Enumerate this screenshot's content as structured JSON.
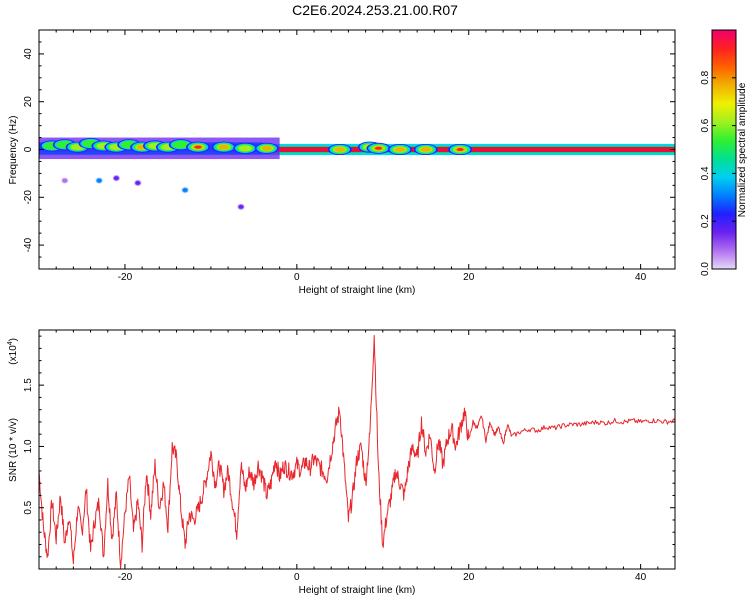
{
  "title": "C2E6.2024.253.21.00.R07",
  "chart_data": [
    {
      "type": "heatmap",
      "xlabel": "Height of straight line (km)",
      "ylabel": "Frequency (Hz)",
      "xlim": [
        -30,
        44
      ],
      "ylim": [
        -50,
        50
      ],
      "xticks": [
        -20,
        0,
        20,
        40
      ],
      "yticks": [
        -40,
        -20,
        0,
        20,
        40
      ],
      "band_hz": [
        -1.5,
        1.5
      ],
      "colorbar": {
        "label": "Normalized spectral amplitude",
        "range": [
          0,
          1
        ],
        "ticks": [
          0.0,
          0.2,
          0.4,
          0.6,
          0.8
        ],
        "colors": [
          "#e8d8f8",
          "#b070f0",
          "#6a20f0",
          "#2020ff",
          "#0080ff",
          "#00d0f0",
          "#00e090",
          "#30f030",
          "#a0f020",
          "#f0f000",
          "#f0b000",
          "#ff6000",
          "#ff2020",
          "#f00070"
        ]
      },
      "blobs": [
        {
          "x": -28.5,
          "f": 1.5,
          "amp": 0.55
        },
        {
          "x": -27,
          "f": 2.0,
          "amp": 0.45
        },
        {
          "x": -25.5,
          "f": 1.0,
          "amp": 0.6
        },
        {
          "x": -24,
          "f": 2.5,
          "amp": 0.5
        },
        {
          "x": -22.5,
          "f": 1.5,
          "amp": 0.65
        },
        {
          "x": -21,
          "f": 1.0,
          "amp": 0.7
        },
        {
          "x": -19.5,
          "f": 2.0,
          "amp": 0.55
        },
        {
          "x": -18,
          "f": 1.0,
          "amp": 0.75
        },
        {
          "x": -16.5,
          "f": 1.5,
          "amp": 0.7
        },
        {
          "x": -15,
          "f": 1.0,
          "amp": 0.65
        },
        {
          "x": -13.5,
          "f": 2.0,
          "amp": 0.55
        },
        {
          "x": -11.5,
          "f": 1.0,
          "amp": 0.9
        },
        {
          "x": -8.5,
          "f": 1.0,
          "amp": 0.85
        },
        {
          "x": -6,
          "f": 0.5,
          "amp": 0.7
        },
        {
          "x": -3.5,
          "f": 0.5,
          "amp": 0.75
        },
        {
          "x": 5,
          "f": 0.0,
          "amp": 0.8
        },
        {
          "x": 8.5,
          "f": 1.0,
          "amp": 0.7
        },
        {
          "x": 9.5,
          "f": 0.5,
          "amp": 0.9
        },
        {
          "x": 12,
          "f": 0.0,
          "amp": 0.85
        },
        {
          "x": 15,
          "f": 0.0,
          "amp": 0.85
        },
        {
          "x": 19,
          "f": 0.0,
          "amp": 0.9
        }
      ],
      "specks": [
        {
          "x": -23,
          "f": -13,
          "amp": 0.3
        },
        {
          "x": -21,
          "f": -12,
          "amp": 0.15
        },
        {
          "x": -18.5,
          "f": -14,
          "amp": 0.15
        },
        {
          "x": -13,
          "f": -17,
          "amp": 0.3
        },
        {
          "x": -6.5,
          "f": -24,
          "amp": 0.15
        },
        {
          "x": -27,
          "f": -13,
          "amp": 0.1
        }
      ]
    },
    {
      "type": "line",
      "xlabel": "Height of straight line (km)",
      "ylabel": "SNR (10 * v/v)",
      "ylabel_exponent": "(x10",
      "ylabel_exponent_power": "4",
      "ylabel_exponent_close": ")",
      "xlim": [
        -30,
        44
      ],
      "ylim": [
        0.0,
        1.95
      ],
      "xticks": [
        -20,
        0,
        20,
        40
      ],
      "yticks": [
        0.5,
        1.0,
        1.5
      ],
      "color": "#e8262c",
      "x": [
        -30,
        -29.5,
        -29,
        -28.5,
        -28,
        -27.5,
        -27,
        -26.5,
        -26,
        -25.5,
        -25,
        -24.5,
        -24,
        -23.5,
        -23,
        -22.5,
        -22,
        -21.5,
        -21,
        -20.5,
        -20,
        -19.5,
        -19,
        -18.5,
        -18,
        -17.5,
        -17,
        -16.5,
        -16,
        -15.5,
        -15,
        -14.5,
        -14,
        -13.5,
        -13,
        -12.5,
        -12,
        -11.5,
        -11,
        -10.5,
        -10,
        -9.5,
        -9,
        -8.5,
        -8,
        -7.5,
        -7,
        -6.5,
        -6,
        -5.5,
        -5,
        -4.5,
        -4,
        -3.5,
        -3,
        -2.5,
        -2,
        -1.5,
        -1,
        -0.5,
        0,
        0.5,
        1,
        1.5,
        2,
        2.5,
        3,
        3.5,
        4,
        4.5,
        5,
        5.5,
        6,
        6.5,
        7,
        7.5,
        8,
        8.5,
        9,
        9.5,
        10,
        10.5,
        11,
        11.5,
        12,
        12.5,
        13,
        13.5,
        14,
        14.5,
        15,
        15.5,
        16,
        16.5,
        17,
        17.5,
        18,
        18.5,
        19,
        19.5,
        20,
        20.5,
        21,
        21.5,
        22,
        22.5,
        23,
        23.5,
        24,
        24.5,
        25,
        26,
        27,
        28,
        29,
        30,
        31,
        32,
        33,
        34,
        35,
        36,
        37,
        38,
        39,
        40,
        41,
        42,
        43,
        44
      ],
      "y": [
        0.8,
        0.35,
        0.1,
        0.55,
        0.25,
        0.6,
        0.2,
        0.45,
        0.05,
        0.5,
        0.3,
        0.65,
        0.15,
        0.4,
        0.55,
        0.1,
        0.7,
        0.25,
        0.6,
        0.05,
        0.45,
        0.75,
        0.3,
        0.55,
        0.2,
        0.8,
        0.45,
        0.85,
        0.5,
        0.7,
        0.35,
        1.0,
        0.9,
        0.5,
        0.2,
        0.45,
        0.4,
        0.48,
        0.6,
        0.75,
        0.95,
        0.7,
        0.85,
        0.65,
        0.8,
        0.55,
        0.3,
        0.85,
        0.65,
        0.8,
        0.7,
        0.85,
        0.75,
        0.6,
        0.7,
        0.9,
        0.75,
        0.85,
        0.8,
        0.78,
        0.85,
        0.8,
        0.88,
        0.82,
        0.9,
        0.85,
        0.8,
        0.75,
        0.95,
        1.15,
        1.3,
        0.85,
        0.4,
        0.6,
        0.9,
        1.0,
        0.7,
        1.1,
        1.92,
        0.8,
        0.2,
        0.45,
        0.6,
        0.8,
        0.7,
        0.6,
        0.85,
        1.0,
        0.9,
        1.2,
        0.95,
        1.1,
        0.8,
        1.05,
        0.85,
        1.05,
        1.15,
        1.0,
        1.15,
        1.28,
        1.05,
        1.2,
        1.15,
        1.25,
        1.05,
        1.2,
        1.1,
        1.15,
        1.02,
        1.18,
        1.08,
        1.12,
        1.14,
        1.13,
        1.16,
        1.15,
        1.17,
        1.18,
        1.18,
        1.19,
        1.2,
        1.19,
        1.21,
        1.2,
        1.21,
        1.2,
        1.21,
        1.21,
        1.2,
        1.21
      ]
    }
  ]
}
